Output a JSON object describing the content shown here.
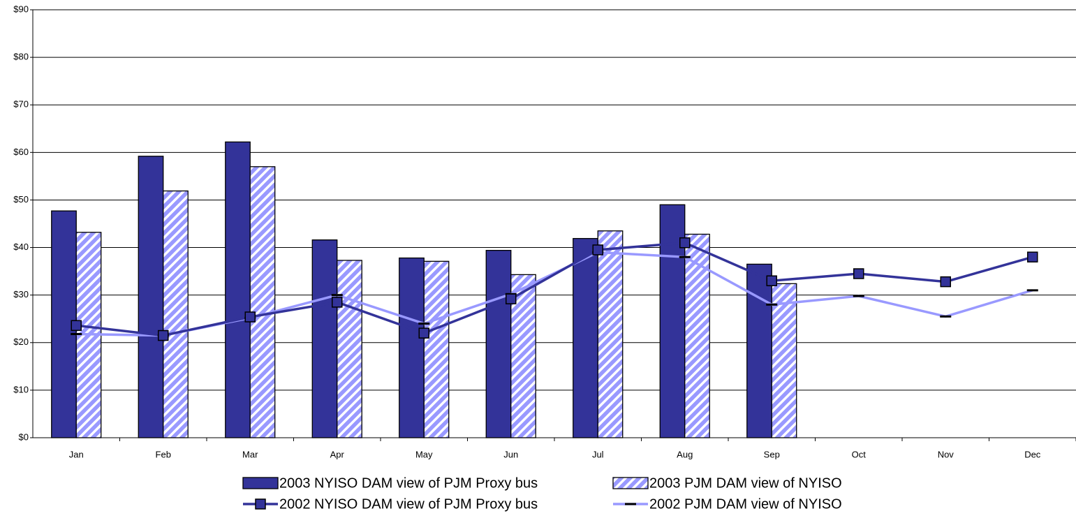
{
  "chart_data": {
    "type": "bar",
    "categories": [
      "Jan",
      "Feb",
      "Mar",
      "Apr",
      "May",
      "Jun",
      "Jul",
      "Aug",
      "Sep",
      "Oct",
      "Nov",
      "Dec"
    ],
    "series": [
      {
        "name": "2003 NYISO DAM view of PJM Proxy bus",
        "type": "bar",
        "color": "#333399",
        "hatch": false,
        "values": [
          47.7,
          59.2,
          62.2,
          41.6,
          37.8,
          39.4,
          41.9,
          49.0,
          36.5,
          null,
          null,
          null
        ]
      },
      {
        "name": "2003 PJM DAM view of NYISO",
        "type": "bar",
        "color": "#9999ff",
        "hatch": true,
        "values": [
          43.2,
          51.9,
          57.0,
          37.3,
          37.1,
          34.3,
          43.5,
          42.8,
          32.4,
          null,
          null,
          null
        ]
      },
      {
        "name": "2002 NYISO DAM view of PJM Proxy bus",
        "type": "line",
        "color": "#333399",
        "marker": "square",
        "values": [
          23.6,
          21.5,
          25.4,
          28.5,
          22.0,
          29.2,
          39.5,
          41.0,
          33.0,
          34.5,
          32.8,
          38.0
        ]
      },
      {
        "name": "2002 PJM DAM view of NYISO",
        "type": "line",
        "color": "#9999ff",
        "marker": "dash",
        "values": [
          21.8,
          21.5,
          25.2,
          30.0,
          24.0,
          30.2,
          39.0,
          38.0,
          28.0,
          29.8,
          25.5,
          31.0
        ]
      }
    ],
    "ylim": [
      0,
      90
    ],
    "yticks": [
      {
        "value": 0,
        "label": "$0"
      },
      {
        "value": 10,
        "label": "$10"
      },
      {
        "value": 20,
        "label": "$20"
      },
      {
        "value": 30,
        "label": "$30"
      },
      {
        "value": 40,
        "label": "$40"
      },
      {
        "value": 50,
        "label": "$50"
      },
      {
        "value": 60,
        "label": "$60"
      },
      {
        "value": 70,
        "label": "$70"
      },
      {
        "value": 80,
        "label": "$80"
      },
      {
        "value": 90,
        "label": "$90"
      }
    ],
    "grid": true,
    "legend": "bottom"
  }
}
